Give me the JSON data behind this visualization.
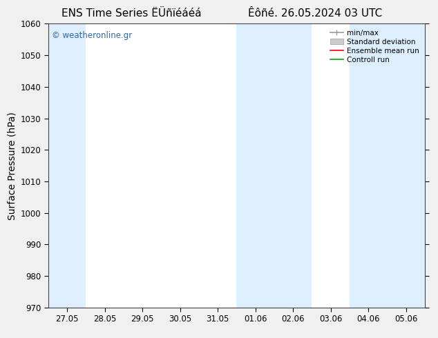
{
  "title_left": "ENS Time Series ËÜñïéáéá",
  "title_right": "Êôñé. 26.05.2024 03 UTC",
  "ylabel": "Surface Pressure (hPa)",
  "ylim": [
    970,
    1060
  ],
  "yticks": [
    970,
    980,
    990,
    1000,
    1010,
    1020,
    1030,
    1040,
    1050,
    1060
  ],
  "xtick_labels": [
    "27.05",
    "28.05",
    "29.05",
    "30.05",
    "31.05",
    "01.06",
    "02.06",
    "03.06",
    "04.06",
    "05.06"
  ],
  "background_color": "#f0f0f0",
  "plot_bg_color": "#ffffff",
  "shaded_band_color": "#ddeeff",
  "watermark_text": "© weatheronline.gr",
  "watermark_color": "#3366aa",
  "legend_entries": [
    "min/max",
    "Standard deviation",
    "Ensemble mean run",
    "Controll run"
  ],
  "legend_colors_line": [
    "#999999",
    "#bbbbbb",
    "#ff0000",
    "#00aa00"
  ],
  "font_size": 10,
  "title_font_size": 11,
  "tick_font_size": 8.5,
  "ylabel_font_size": 10
}
